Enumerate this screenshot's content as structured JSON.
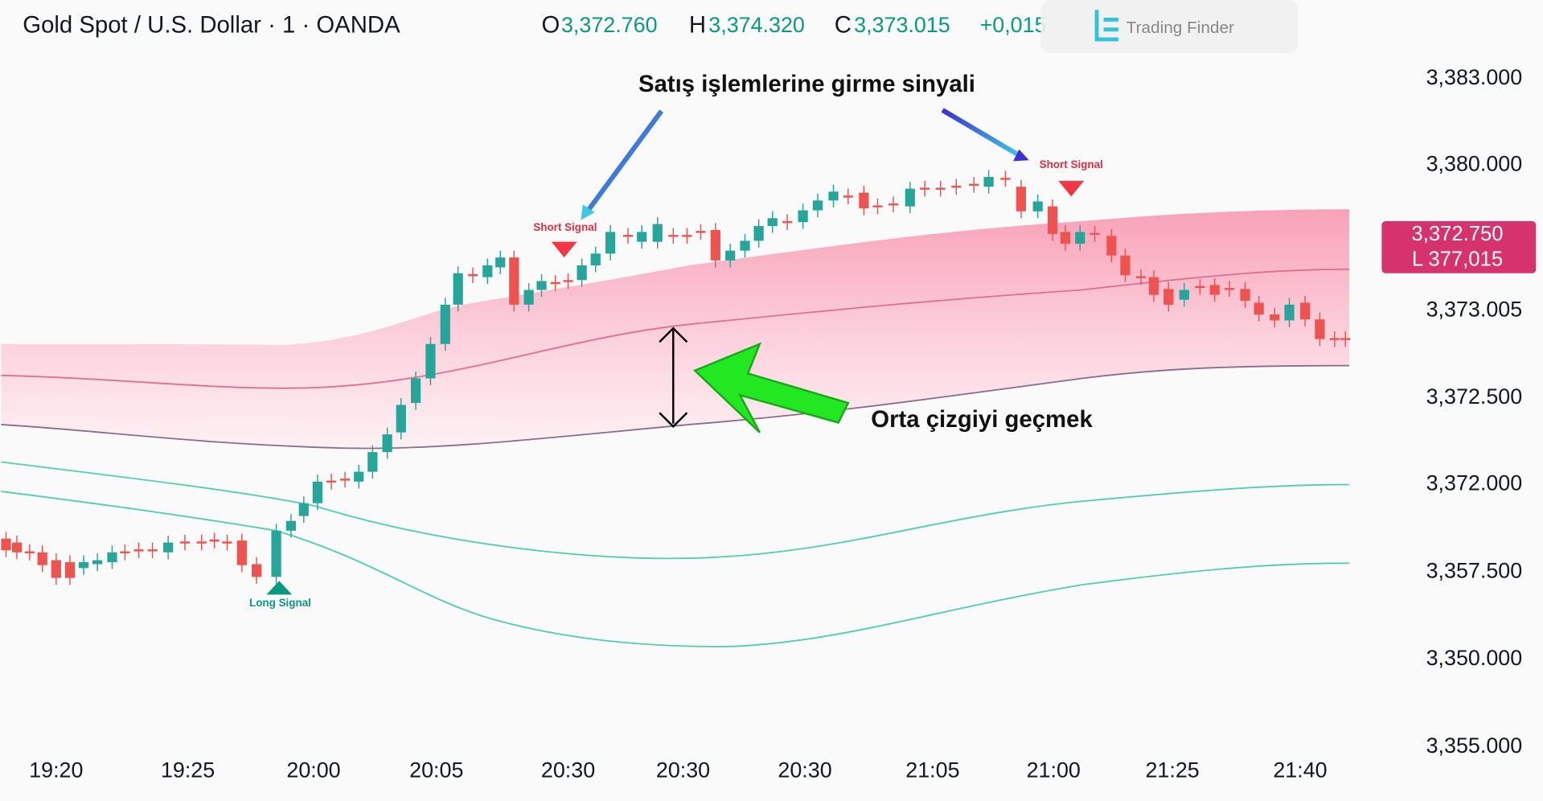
{
  "header": {
    "title": "Gold Spot / U.S. Dollar · 1 · OANDA",
    "ohlc": [
      {
        "key": "O",
        "value": "3,372.760"
      },
      {
        "key": "H",
        "value": "3,374.320"
      },
      {
        "key": "C",
        "value": "3,373.015"
      }
    ],
    "change": "+0,015"
  },
  "watermark": "Trading Finder",
  "price_axis": [
    "3,383.000",
    "3,380.000",
    "3,373.005",
    "3,372.500",
    "3,372.000",
    "3,357.500",
    "3,350.000",
    "3,355.000"
  ],
  "time_axis": [
    "19:20",
    "19:25",
    "20:00",
    "20:05",
    "20:30",
    "20:30",
    "20:30",
    "21:05",
    "21:00",
    "21:25",
    "21:40"
  ],
  "price_badge": [
    "3,372.750",
    "L 377,015"
  ],
  "annotations": {
    "top": "Satış işlemlerine girme sinyali",
    "middle": "Orta çizgiyi geçmek"
  },
  "signals": [
    "Short Signal",
    "Short Signal",
    "Long Signal"
  ]
}
